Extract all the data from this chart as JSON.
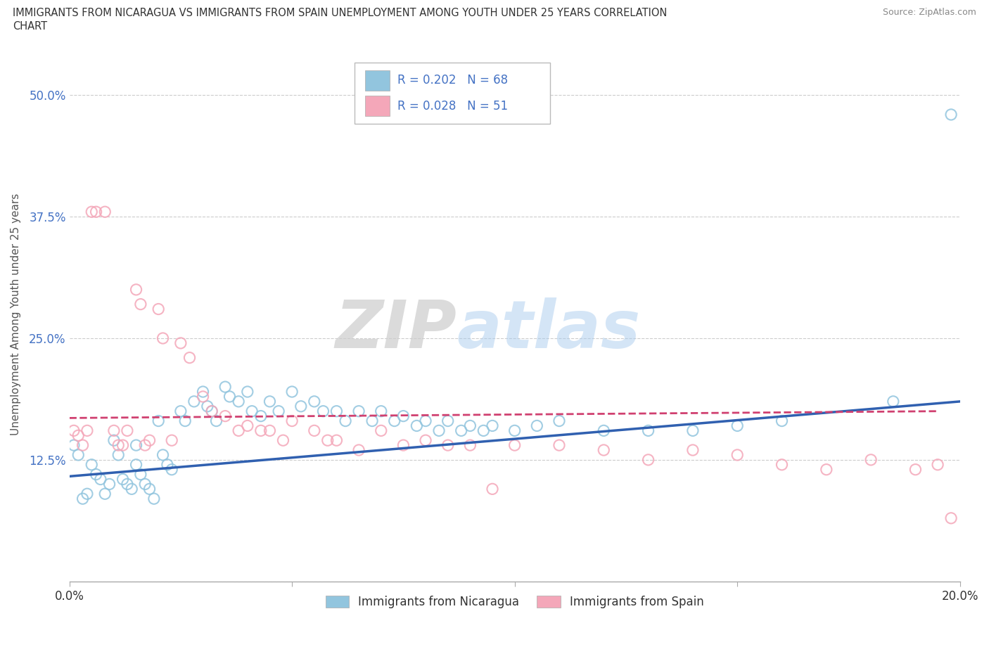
{
  "title_line1": "IMMIGRANTS FROM NICARAGUA VS IMMIGRANTS FROM SPAIN UNEMPLOYMENT AMONG YOUTH UNDER 25 YEARS CORRELATION",
  "title_line2": "CHART",
  "source": "Source: ZipAtlas.com",
  "ylabel": "Unemployment Among Youth under 25 years",
  "xlim": [
    0.0,
    0.2
  ],
  "ylim": [
    0.0,
    0.55
  ],
  "yticks": [
    0.0,
    0.125,
    0.25,
    0.375,
    0.5
  ],
  "ytick_labels": [
    "",
    "12.5%",
    "25.0%",
    "37.5%",
    "50.0%"
  ],
  "xticks": [
    0.0,
    0.05,
    0.1,
    0.15,
    0.2
  ],
  "xtick_labels": [
    "0.0%",
    "",
    "",
    "",
    "20.0%"
  ],
  "nicaragua_color": "#92c5de",
  "spain_color": "#f4a7b9",
  "nicaragua_R": 0.202,
  "nicaragua_N": 68,
  "spain_R": 0.028,
  "spain_N": 51,
  "nicaragua_scatter_x": [
    0.001,
    0.002,
    0.003,
    0.004,
    0.005,
    0.006,
    0.007,
    0.008,
    0.009,
    0.01,
    0.011,
    0.012,
    0.013,
    0.014,
    0.015,
    0.015,
    0.016,
    0.017,
    0.018,
    0.019,
    0.02,
    0.021,
    0.022,
    0.023,
    0.025,
    0.026,
    0.028,
    0.03,
    0.031,
    0.032,
    0.033,
    0.035,
    0.036,
    0.038,
    0.04,
    0.041,
    0.043,
    0.045,
    0.047,
    0.05,
    0.052,
    0.055,
    0.057,
    0.06,
    0.062,
    0.065,
    0.068,
    0.07,
    0.073,
    0.075,
    0.078,
    0.08,
    0.083,
    0.085,
    0.088,
    0.09,
    0.093,
    0.095,
    0.1,
    0.105,
    0.11,
    0.12,
    0.13,
    0.14,
    0.15,
    0.16,
    0.185,
    0.198
  ],
  "nicaragua_scatter_y": [
    0.14,
    0.13,
    0.085,
    0.09,
    0.12,
    0.11,
    0.105,
    0.09,
    0.1,
    0.145,
    0.13,
    0.105,
    0.1,
    0.095,
    0.14,
    0.12,
    0.11,
    0.1,
    0.095,
    0.085,
    0.165,
    0.13,
    0.12,
    0.115,
    0.175,
    0.165,
    0.185,
    0.195,
    0.18,
    0.175,
    0.165,
    0.2,
    0.19,
    0.185,
    0.195,
    0.175,
    0.17,
    0.185,
    0.175,
    0.195,
    0.18,
    0.185,
    0.175,
    0.175,
    0.165,
    0.175,
    0.165,
    0.175,
    0.165,
    0.17,
    0.16,
    0.165,
    0.155,
    0.165,
    0.155,
    0.16,
    0.155,
    0.16,
    0.155,
    0.16,
    0.165,
    0.155,
    0.155,
    0.155,
    0.16,
    0.165,
    0.185,
    0.48
  ],
  "spain_scatter_x": [
    0.001,
    0.002,
    0.003,
    0.004,
    0.005,
    0.006,
    0.008,
    0.01,
    0.011,
    0.012,
    0.013,
    0.015,
    0.016,
    0.017,
    0.018,
    0.02,
    0.021,
    0.023,
    0.025,
    0.027,
    0.03,
    0.032,
    0.035,
    0.038,
    0.04,
    0.043,
    0.045,
    0.048,
    0.05,
    0.055,
    0.058,
    0.06,
    0.065,
    0.07,
    0.075,
    0.08,
    0.085,
    0.09,
    0.095,
    0.1,
    0.11,
    0.12,
    0.13,
    0.14,
    0.15,
    0.16,
    0.17,
    0.18,
    0.19,
    0.195,
    0.198
  ],
  "spain_scatter_y": [
    0.155,
    0.15,
    0.14,
    0.155,
    0.38,
    0.38,
    0.38,
    0.155,
    0.14,
    0.14,
    0.155,
    0.3,
    0.285,
    0.14,
    0.145,
    0.28,
    0.25,
    0.145,
    0.245,
    0.23,
    0.19,
    0.175,
    0.17,
    0.155,
    0.16,
    0.155,
    0.155,
    0.145,
    0.165,
    0.155,
    0.145,
    0.145,
    0.135,
    0.155,
    0.14,
    0.145,
    0.14,
    0.14,
    0.095,
    0.14,
    0.14,
    0.135,
    0.125,
    0.135,
    0.13,
    0.12,
    0.115,
    0.125,
    0.115,
    0.12,
    0.065
  ],
  "nicaragua_trend_x": [
    0.0,
    0.2
  ],
  "nicaragua_trend_y": [
    0.108,
    0.185
  ],
  "spain_trend_x": [
    0.0,
    0.195
  ],
  "spain_trend_y": [
    0.168,
    0.175
  ],
  "watermark_zip": "ZIP",
  "watermark_atlas": "atlas",
  "legend_label_nicaragua": "Immigrants from Nicaragua",
  "legend_label_spain": "Immigrants from Spain",
  "background_color": "#ffffff",
  "grid_color": "#cccccc",
  "trend_nic_color": "#3060b0",
  "trend_spa_color": "#d04070"
}
